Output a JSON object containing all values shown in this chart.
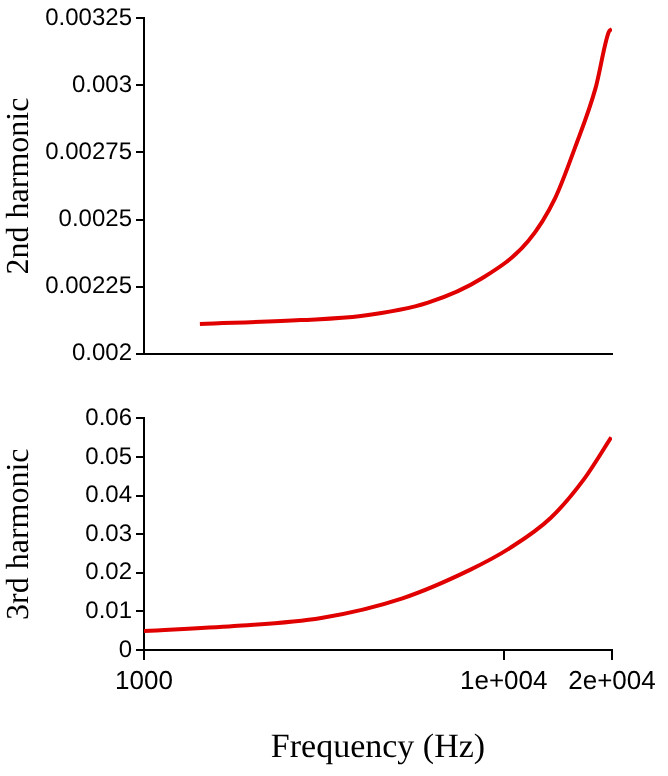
{
  "chart_data": [
    {
      "type": "line",
      "ylabel": "2nd harmonic",
      "log": "x",
      "xlim": [
        1000,
        20000
      ],
      "ylim": [
        0.002,
        0.00325
      ],
      "yticks": [
        0.002,
        0.00225,
        0.0025,
        0.00275,
        0.003,
        0.00325
      ],
      "tick_labels": "y",
      "marker": "none",
      "line_style": "solid",
      "x": [
        1430,
        2730,
        4010,
        6160,
        8680,
        11700,
        13900,
        15800,
        18000,
        19600,
        20000
      ],
      "series": [
        {
          "color": "#e00000",
          "values": [
            0.00211,
            0.002125,
            0.00214,
            0.00219,
            0.00228,
            0.00242,
            0.00258,
            0.00277,
            0.00299,
            0.0032,
            0.00321
          ]
        }
      ]
    },
    {
      "type": "line",
      "ylabel": "3rd harmonic",
      "xlabel": "Frequency (Hz)",
      "log": "x",
      "xlim": [
        1000,
        20000
      ],
      "xticks": [
        1000,
        {
          "value": 10000,
          "label": "1e+004"
        },
        {
          "value": 20000,
          "label": "2e+004"
        }
      ],
      "ylim": [
        0,
        0.06
      ],
      "yticks": [
        0,
        0.01,
        0.02,
        0.03,
        0.04,
        0.05,
        0.06
      ],
      "marker": "none",
      "line_style": "solid",
      "x": [
        1000,
        1780,
        3110,
        5230,
        8030,
        10400,
        13500,
        16700,
        19900
      ],
      "series": [
        {
          "color": "#e00000",
          "values": [
            0.0049,
            0.0062,
            0.0083,
            0.0134,
            0.0207,
            0.0264,
            0.0342,
            0.0442,
            0.0551
          ]
        }
      ]
    }
  ]
}
